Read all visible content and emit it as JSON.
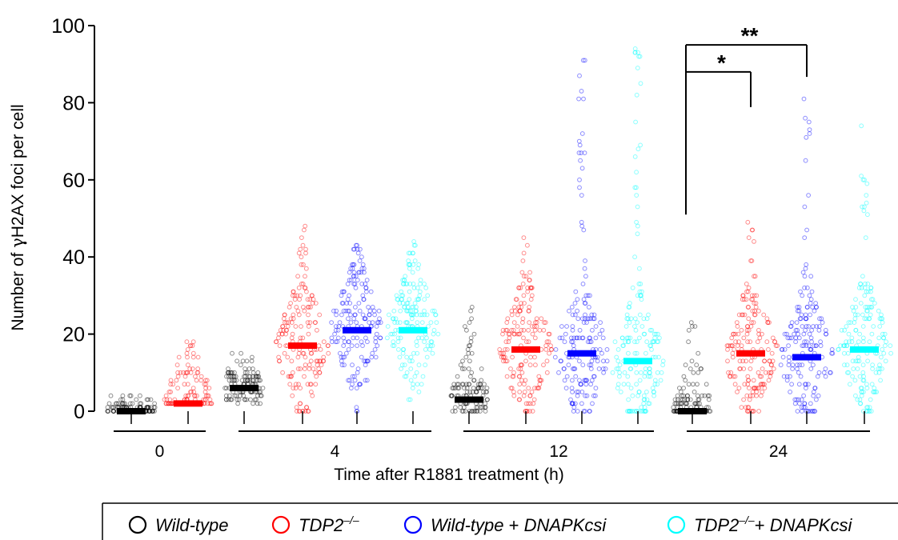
{
  "chart_data": {
    "type": "scatter",
    "ylabel_prefix": "Number of ",
    "ylabel_gamma": "γ",
    "ylabel_suffix": "H2AX foci per cell",
    "xlabel": "Time after R1881 treatment (h)",
    "ylim": [
      0,
      100
    ],
    "yticks": [
      0,
      20,
      40,
      60,
      80,
      100
    ],
    "groups": [
      "0",
      "4",
      "12",
      "24"
    ],
    "series": [
      {
        "key": "wt",
        "color": "#000000",
        "legend_main": "Wild-type",
        "legend_sup": "",
        "legend_extra": ""
      },
      {
        "key": "tdp2",
        "color": "#ff0000",
        "legend_main": "TDP2",
        "legend_sup": "–/–",
        "legend_extra": ""
      },
      {
        "key": "wt_dnapk",
        "color": "#0000ff",
        "legend_main": "Wild-type",
        "legend_sup": "",
        "legend_extra": " + DNAPKcsi"
      },
      {
        "key": "tdp2_dnapk",
        "color": "#00ffff",
        "legend_main": "TDP2",
        "legend_sup": "–/–",
        "legend_extra": "+ DNAPKcsi"
      }
    ],
    "columns": [
      {
        "group": "0",
        "series": "wt",
        "median": 0,
        "max": 4,
        "spread": "tight"
      },
      {
        "group": "0",
        "series": "tdp2",
        "median": 2,
        "max": 18,
        "spread": "tight"
      },
      {
        "group": "4",
        "series": "wt",
        "median": 6,
        "max": 13,
        "spread": "mid"
      },
      {
        "group": "4",
        "series": "tdp2",
        "median": 17,
        "max": 48,
        "spread": "wide"
      },
      {
        "group": "4",
        "series": "wt_dnapk",
        "median": 21,
        "max": 43,
        "spread": "wide"
      },
      {
        "group": "4",
        "series": "tdp2_dnapk",
        "median": 21,
        "max": 44,
        "spread": "wide"
      },
      {
        "group": "12",
        "series": "wt",
        "median": 3,
        "max": 24,
        "spread": "mid"
      },
      {
        "group": "12",
        "series": "tdp2",
        "median": 16,
        "max": 45,
        "spread": "wide"
      },
      {
        "group": "12",
        "series": "wt_dnapk",
        "median": 15,
        "max": 91,
        "spread": "wide"
      },
      {
        "group": "12",
        "series": "tdp2_dnapk",
        "median": 13,
        "max": 94,
        "spread": "wide"
      },
      {
        "group": "24",
        "series": "wt",
        "median": 0,
        "max": 22,
        "spread": "mid"
      },
      {
        "group": "24",
        "series": "tdp2",
        "median": 15,
        "max": 49,
        "spread": "wide"
      },
      {
        "group": "24",
        "series": "wt_dnapk",
        "median": 14,
        "max": 81,
        "spread": "wide"
      },
      {
        "group": "24",
        "series": "tdp2_dnapk",
        "median": 16,
        "max": 74,
        "spread": "wide"
      }
    ],
    "significance": [
      {
        "label": "*",
        "from_group": "24",
        "from_series": "wt",
        "to_series": "tdp2",
        "y": 88
      },
      {
        "label": "**",
        "from_group": "24",
        "from_series": "wt",
        "to_series": "wt_dnapk",
        "y": 95
      }
    ],
    "grid": false,
    "legend_placement": "bottom"
  }
}
